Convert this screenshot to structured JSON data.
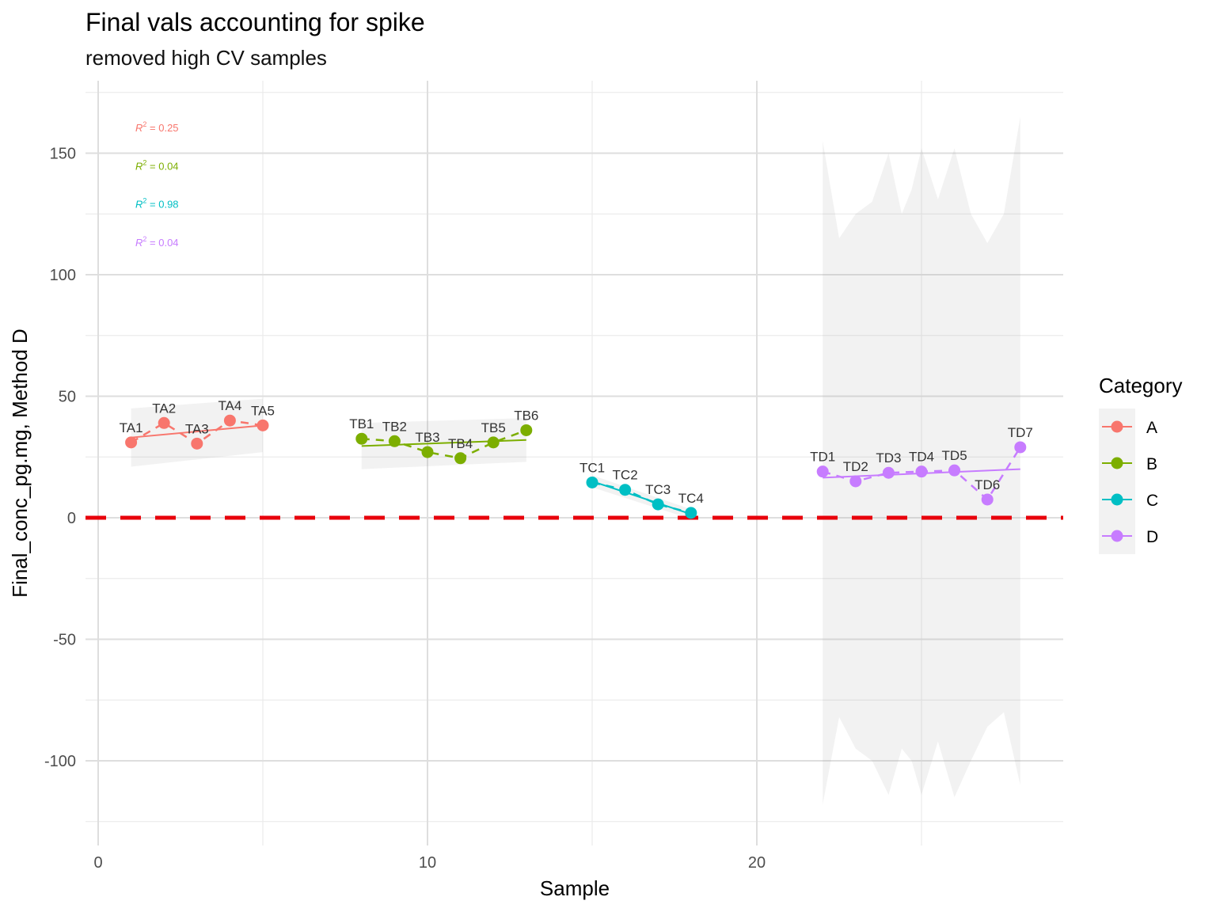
{
  "chart_data": {
    "type": "line",
    "title": "Final vals accounting for spike",
    "subtitle": "removed high CV samples",
    "xlabel": "Sample",
    "ylabel": "Final_conc_pg.mg, Method D",
    "xlim": [
      -0.3,
      29.3
    ],
    "ylim": [
      -133,
      178
    ],
    "x_ticks": [
      0,
      10,
      20
    ],
    "y_ticks": [
      -100,
      -50,
      0,
      50,
      100,
      150
    ],
    "grid": true,
    "reference_line": {
      "y": 0,
      "style": "dashed",
      "color": "#e8000b"
    },
    "legend": {
      "title": "Category",
      "position": "right"
    },
    "series": [
      {
        "name": "A",
        "color": "#f8766d",
        "x": [
          1,
          2,
          3,
          4,
          5
        ],
        "y": [
          31,
          39,
          30.5,
          40,
          38
        ],
        "labels": [
          "TA1",
          "TA2",
          "TA3",
          "TA4",
          "TA5"
        ],
        "fit": {
          "y_start": 33,
          "y_end": 38
        },
        "ribbon": {
          "lower_start": 21,
          "lower_end": 27,
          "upper_start": 45,
          "upper_end": 49
        },
        "r2": "= 0.25"
      },
      {
        "name": "B",
        "color": "#7cae00",
        "x": [
          8,
          9,
          10,
          11,
          12,
          13
        ],
        "y": [
          32.5,
          31.5,
          27,
          24.5,
          31,
          36
        ],
        "labels": [
          "TB1",
          "TB2",
          "TB3",
          "TB4",
          "TB5",
          "TB6"
        ],
        "fit": {
          "y_start": 29.5,
          "y_end": 32
        },
        "ribbon": {
          "lower_start": 20,
          "lower_end": 23,
          "upper_start": 39,
          "upper_end": 41
        },
        "r2": "= 0.04"
      },
      {
        "name": "C",
        "color": "#00bfc4",
        "x": [
          15,
          16,
          17,
          18
        ],
        "y": [
          14.5,
          11.5,
          5.5,
          2
        ],
        "labels": [
          "TC1",
          "TC2",
          "TC3",
          "TC4"
        ],
        "fit": {
          "y_start": 15,
          "y_end": 1.5
        },
        "ribbon": {
          "lower_start": 12.5,
          "lower_end": -0.5,
          "upper_start": 17.5,
          "upper_end": 3.5
        },
        "r2": "= 0.98"
      },
      {
        "name": "D",
        "color": "#c77cff",
        "x": [
          22,
          23,
          24,
          25,
          26,
          27,
          28
        ],
        "y": [
          19,
          15,
          18.5,
          19,
          19.5,
          7.5,
          29
        ],
        "labels": [
          "TD1",
          "TD2",
          "TD3",
          "TD4",
          "TD5",
          "TD6",
          "TD7"
        ],
        "fit": {
          "y_start": 16.5,
          "y_end": 20
        },
        "ribbon": {
          "upper": [
            [
              22,
              155
            ],
            [
              22.5,
              115
            ],
            [
              23,
              125
            ],
            [
              23.5,
              130
            ],
            [
              24,
              150
            ],
            [
              24.4,
              125
            ],
            [
              24.7,
              135
            ],
            [
              25,
              152
            ],
            [
              25.5,
              131
            ],
            [
              26,
              152
            ],
            [
              26.5,
              125
            ],
            [
              27,
              113
            ],
            [
              27.5,
              125
            ],
            [
              28,
              165
            ]
          ],
          "lower": [
            [
              22,
              -118
            ],
            [
              22.5,
              -82
            ],
            [
              23,
              -95
            ],
            [
              23.5,
              -100
            ],
            [
              24,
              -114
            ],
            [
              24.4,
              -95
            ],
            [
              24.7,
              -100
            ],
            [
              25,
              -114
            ],
            [
              25.5,
              -92
            ],
            [
              26,
              -115
            ],
            [
              26.5,
              -100
            ],
            [
              27,
              -86
            ],
            [
              27.5,
              -80
            ],
            [
              28,
              -110
            ]
          ]
        },
        "r2": "= 0.04"
      }
    ]
  }
}
